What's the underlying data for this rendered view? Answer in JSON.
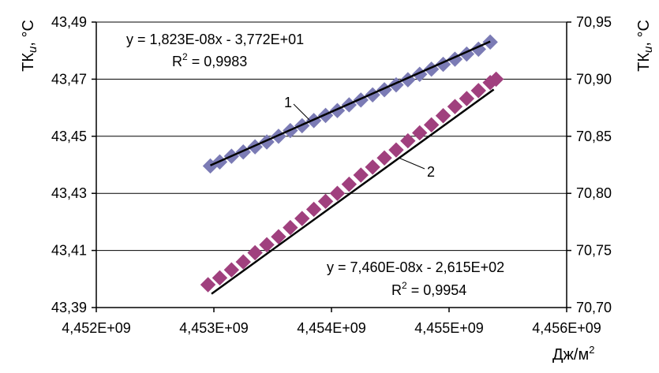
{
  "chart_data": {
    "type": "scatter",
    "x_axis": {
      "ticks": [
        "4,452E+09",
        "4,453E+09",
        "4,454E+09",
        "4,455E+09",
        "4,456E+09"
      ],
      "tick_values": [
        4452000000,
        4453000000,
        4454000000,
        4455000000,
        4456000000
      ],
      "range": [
        4452000000,
        4456000000
      ],
      "label": "Дж/м"
    },
    "y_left": {
      "ticks": [
        "43,39",
        "43,41",
        "43,43",
        "43,45",
        "43,47",
        "43,49"
      ],
      "tick_values": [
        43.39,
        43.41,
        43.43,
        43.45,
        43.47,
        43.49
      ],
      "range": [
        43.39,
        43.49
      ],
      "label_main": "ТК",
      "label_sub": "и",
      "label_unit": ", °С"
    },
    "y_right": {
      "ticks": [
        "70,70",
        "70,75",
        "70,80",
        "70,85",
        "70,90",
        "70,95"
      ],
      "tick_values": [
        70.7,
        70.75,
        70.8,
        70.85,
        70.9,
        70.95
      ],
      "range": [
        70.7,
        70.95
      ],
      "label_main": "ТК",
      "label_sub": "и",
      "label_unit": ", °С"
    },
    "grid": "horizontal",
    "series": [
      {
        "label": "1",
        "axis": "left",
        "color": "#7b7bb5",
        "marker": "diamond",
        "x": [
          4452970000,
          4453050000,
          4453150000,
          4453250000,
          4453350000,
          4453450000,
          4453550000,
          4453650000,
          4453750000,
          4453850000,
          4453950000,
          4454050000,
          4454150000,
          4454250000,
          4454350000,
          4454450000,
          4454550000,
          4454650000,
          4454750000,
          4454850000,
          4454950000,
          4455050000,
          4455150000,
          4455250000,
          4455350000
        ],
        "y": [
          43.4396,
          43.441,
          43.443,
          43.4445,
          43.4463,
          43.448,
          43.45,
          43.452,
          43.4537,
          43.4555,
          43.4573,
          43.459,
          43.461,
          43.4627,
          43.4645,
          43.4663,
          43.468,
          43.4698,
          43.4717,
          43.4735,
          43.4752,
          43.477,
          43.4788,
          43.4805,
          43.483
        ]
      },
      {
        "label": "2",
        "axis": "right",
        "color": "#a0407e",
        "marker": "diamond",
        "x": [
          4452950000,
          4453050000,
          4453150000,
          4453250000,
          4453350000,
          4453450000,
          4453550000,
          4453650000,
          4453750000,
          4453850000,
          4453950000,
          4454050000,
          4454150000,
          4454250000,
          4454350000,
          4454450000,
          4454550000,
          4454650000,
          4454750000,
          4454850000,
          4454950000,
          4455050000,
          4455150000,
          4455250000,
          4455350000,
          4455400000
        ],
        "y": [
          70.72,
          70.726,
          70.733,
          70.74,
          70.748,
          70.755,
          70.762,
          70.77,
          70.778,
          70.786,
          70.793,
          70.8,
          70.808,
          70.816,
          70.823,
          70.831,
          70.838,
          70.846,
          70.853,
          70.86,
          70.868,
          70.876,
          70.883,
          70.89,
          70.897,
          70.9
        ]
      }
    ],
    "trendlines": [
      {
        "series": "1",
        "equation": "y = 1,823E-08x - 3,772E+01",
        "r2_label": "R",
        "r2_sup": "2",
        "r2_value": " = 0,9983",
        "x": [
          4452970000,
          4455350000
        ],
        "y": [
          43.4398,
          43.4832
        ]
      },
      {
        "series": "2",
        "equation": "y = 7,460E-08x - 2,615E+02",
        "r2_label": "R",
        "r2_sup": "2",
        "r2_value": " = 0,9954",
        "x": [
          4452980000,
          4455380000
        ],
        "y": [
          70.712,
          70.891
        ]
      }
    ]
  }
}
